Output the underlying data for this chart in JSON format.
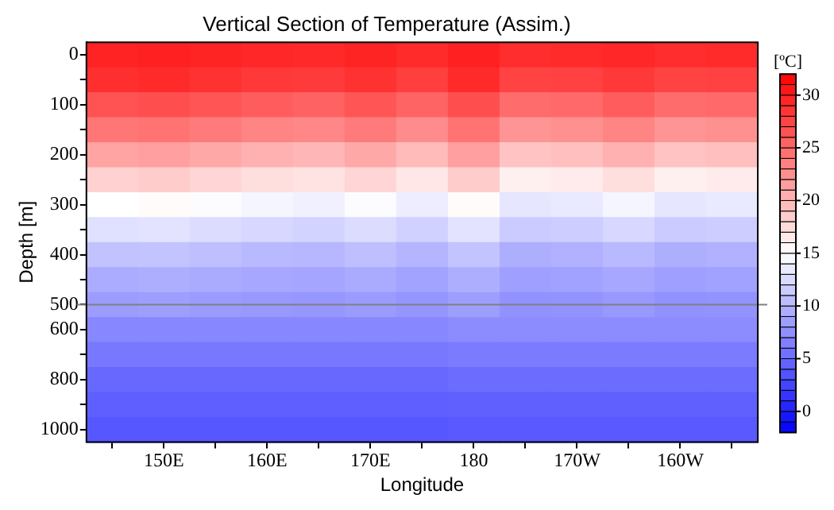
{
  "chart_data": {
    "type": "heatmap",
    "title": "Vertical Section of Temperature (Assim.)",
    "xlabel": "Longitude",
    "ylabel": "Depth [m]",
    "clabel": "[ºC]",
    "categories": [
      null,
      "150E",
      null,
      "160E",
      null,
      "170E",
      null,
      "180",
      null,
      "170W",
      null,
      "160W",
      null
    ],
    "y_categories": [
      "0",
      null,
      "100",
      null,
      "200",
      null,
      "300",
      null,
      "400",
      null,
      "500",
      "600",
      null,
      "800",
      null,
      "1000"
    ],
    "cells": [
      [
        29.7,
        29.8,
        29.6,
        29.4,
        29.3,
        29.6,
        29.2,
        29.8,
        29.0,
        29.1,
        29.4,
        29.0,
        29.1
      ],
      [
        28.9,
        29.1,
        28.7,
        28.3,
        28.1,
        28.7,
        27.9,
        29.1,
        27.5,
        27.7,
        28.3,
        27.5,
        27.7
      ],
      [
        26.5,
        26.8,
        26.3,
        25.8,
        25.5,
        26.3,
        25.3,
        26.8,
        24.8,
        25.0,
        25.8,
        24.8,
        25.0
      ],
      [
        24.1,
        24.3,
        23.8,
        23.2,
        23.0,
        23.8,
        22.7,
        24.3,
        22.1,
        22.4,
        23.2,
        22.1,
        22.4
      ],
      [
        21.1,
        21.4,
        20.8,
        20.2,
        19.9,
        20.8,
        19.6,
        21.4,
        19.0,
        19.3,
        20.2,
        19.0,
        19.3
      ],
      [
        18.1,
        18.4,
        17.8,
        17.2,
        16.9,
        17.8,
        16.6,
        18.4,
        16.0,
        16.3,
        17.2,
        16.0,
        16.3
      ],
      [
        15.0,
        15.3,
        14.8,
        14.3,
        14.0,
        14.8,
        13.8,
        15.3,
        13.3,
        13.5,
        14.3,
        13.3,
        13.5
      ],
      [
        12.9,
        13.1,
        12.7,
        12.3,
        12.1,
        12.7,
        11.9,
        13.1,
        11.5,
        11.7,
        12.3,
        11.5,
        11.7
      ],
      [
        10.9,
        11.0,
        10.7,
        10.3,
        10.2,
        10.7,
        10.0,
        11.0,
        9.6,
        9.8,
        10.3,
        9.6,
        9.8
      ],
      [
        9.4,
        9.6,
        9.3,
        9.1,
        9.0,
        9.3,
        8.8,
        9.6,
        8.6,
        8.7,
        9.1,
        8.6,
        8.7
      ],
      [
        8.4,
        8.5,
        8.3,
        8.1,
        8.0,
        8.3,
        7.9,
        8.5,
        7.7,
        7.8,
        8.1,
        7.7,
        7.8
      ],
      [
        7.0,
        7.0,
        7.0,
        7.0,
        7.0,
        7.0,
        7.0,
        7.3,
        7.3,
        7.3,
        7.3,
        7.3,
        7.3
      ],
      [
        6.0,
        6.0,
        6.0,
        6.0,
        6.0,
        6.0,
        6.0,
        6.2,
        6.2,
        6.2,
        6.2,
        6.2,
        6.2
      ],
      [
        4.9,
        4.9,
        4.9,
        4.9,
        4.9,
        4.9,
        4.9,
        5.2,
        5.2,
        5.2,
        5.2,
        5.2,
        5.2
      ],
      [
        4.3,
        4.3,
        4.3,
        4.3,
        4.3,
        4.3,
        4.3,
        4.4,
        4.4,
        4.4,
        4.4,
        4.4,
        4.4
      ],
      [
        3.8,
        3.8,
        3.8,
        3.8,
        3.8,
        3.8,
        3.8,
        3.9,
        3.9,
        3.9,
        3.9,
        3.9,
        3.9
      ]
    ],
    "clim": [
      -2,
      32
    ],
    "cticks": [
      0,
      5,
      10,
      15,
      20,
      25,
      30
    ],
    "ref_lines": [
      {
        "axis": "y",
        "value": "500",
        "color": "#808080"
      }
    ]
  }
}
